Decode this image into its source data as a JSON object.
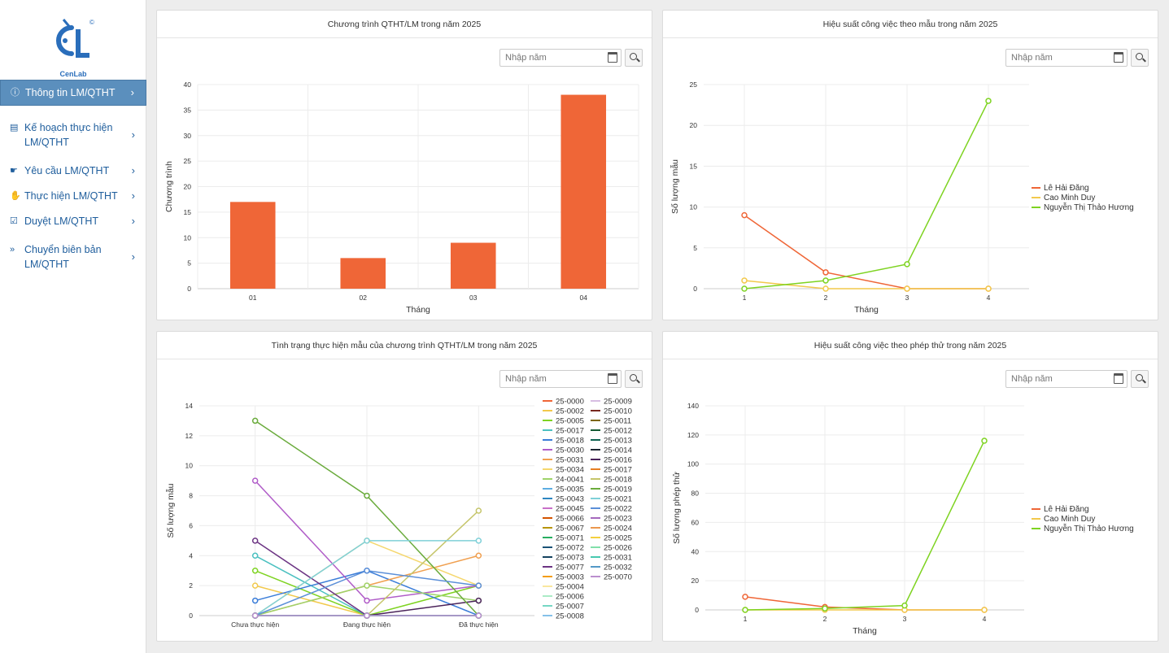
{
  "brand": {
    "name": "CenLab",
    "mark": "©",
    "color": "#2a6ebb"
  },
  "sidebar": {
    "items": [
      {
        "label": "Thông tin LM/QTHT",
        "icon": "info-icon",
        "active": true
      },
      {
        "label": "Kế hoạch thực hiện LM/QTHT",
        "icon": "document-icon",
        "active": false
      },
      {
        "label": "Yêu cầu LM/QTHT",
        "icon": "hand-point-icon",
        "active": false
      },
      {
        "label": "Thực hiện LM/QTHT",
        "icon": "hand-icon",
        "active": false
      },
      {
        "label": "Duyệt LM/QTHT",
        "icon": "check-square-icon",
        "active": false
      },
      {
        "label": "Chuyển biên bản LM/QTHT",
        "icon": "fast-forward-icon",
        "active": false
      }
    ]
  },
  "filter": {
    "placeholder": "Nhập năm"
  },
  "palette": [
    "#ef6637",
    "#f2c94c",
    "#7ed321",
    "#4bc0c0",
    "#3b7dd8",
    "#9b59b6"
  ],
  "charts": [
    {
      "title": "Chương trình QTHT/LM trong năm 2025",
      "chart_data": {
        "type": "bar",
        "categories": [
          "01",
          "02",
          "03",
          "04"
        ],
        "values": [
          17,
          6,
          9,
          38
        ],
        "xlabel": "Tháng",
        "ylabel": "Chương trình",
        "ylim": [
          0,
          40
        ],
        "yticks": [
          0,
          5,
          10,
          15,
          20,
          25,
          30,
          35,
          40
        ],
        "color": "#ef6637",
        "grid": true
      }
    },
    {
      "title": "Hiệu suất công việc theo mẫu trong năm 2025",
      "chart_data": {
        "type": "line",
        "x": [
          1,
          2,
          3,
          4
        ],
        "series": [
          {
            "name": "Lê Hải Đăng",
            "values": [
              9,
              2,
              0,
              0
            ],
            "color": "#ef6637"
          },
          {
            "name": "Cao Minh Duy",
            "values": [
              1,
              0,
              0,
              0
            ],
            "color": "#f2c94c"
          },
          {
            "name": "Nguyễn Thị Thảo Hương",
            "values": [
              0,
              1,
              3,
              23
            ],
            "color": "#7ed321"
          }
        ],
        "xlabel": "Tháng",
        "ylabel": "Số lượng mẫu",
        "ylim": [
          0,
          25
        ],
        "yticks": [
          0,
          5,
          10,
          15,
          20,
          25
        ],
        "legend": "right",
        "grid": true
      }
    },
    {
      "title": "Tình trạng thực hiện mẫu của chương trình QTHT/LM trong năm 2025",
      "chart_data": {
        "type": "line",
        "categories": [
          "Chưa thực hiện",
          "Đang thực hiện",
          "Đã thực hiện"
        ],
        "series": [
          {
            "name": "25-0000",
            "values": [
              0,
              0,
              0
            ],
            "color": "#ef6637"
          },
          {
            "name": "25-0002",
            "values": [
              2,
              0,
              0
            ],
            "color": "#f2c94c"
          },
          {
            "name": "25-0005",
            "values": [
              3,
              0,
              2
            ],
            "color": "#7ed321"
          },
          {
            "name": "25-0017",
            "values": [
              4,
              0,
              0
            ],
            "color": "#4bc0c0"
          },
          {
            "name": "25-0018",
            "values": [
              1,
              3,
              0
            ],
            "color": "#3b7dd8"
          },
          {
            "name": "25-0030",
            "values": [
              9,
              1,
              2
            ],
            "color": "#b05cc8"
          },
          {
            "name": "25-0031",
            "values": [
              0,
              2,
              4
            ],
            "color": "#f0a050"
          },
          {
            "name": "25-0034",
            "values": [
              0,
              5,
              2
            ],
            "color": "#f5d76e"
          },
          {
            "name": "24-0041",
            "values": [
              0,
              2,
              1
            ],
            "color": "#9ed36a"
          },
          {
            "name": "25-0035",
            "values": [
              0,
              0,
              0
            ],
            "color": "#5dade2"
          },
          {
            "name": "25-0043",
            "values": [
              0,
              0,
              0
            ],
            "color": "#2e86c1"
          },
          {
            "name": "25-0045",
            "values": [
              0,
              0,
              0
            ],
            "color": "#c870c8"
          },
          {
            "name": "25-0066",
            "values": [
              0,
              0,
              0
            ],
            "color": "#d35400"
          },
          {
            "name": "25-0067",
            "values": [
              0,
              0,
              0
            ],
            "color": "#b7950b"
          },
          {
            "name": "25-0071",
            "values": [
              0,
              0,
              0
            ],
            "color": "#27ae60"
          },
          {
            "name": "25-0072",
            "values": [
              0,
              0,
              0
            ],
            "color": "#1a5276"
          },
          {
            "name": "25-0073",
            "values": [
              0,
              0,
              0
            ],
            "color": "#154360"
          },
          {
            "name": "25-0077",
            "values": [
              5,
              0,
              0
            ],
            "color": "#6c3483"
          },
          {
            "name": "25-0003",
            "values": [
              0,
              0,
              0
            ],
            "color": "#f39c12"
          },
          {
            "name": "25-0004",
            "values": [
              0,
              0,
              0
            ],
            "color": "#f9e79f"
          },
          {
            "name": "25-0006",
            "values": [
              0,
              0,
              0
            ],
            "color": "#abebc6"
          },
          {
            "name": "25-0007",
            "values": [
              0,
              0,
              0
            ],
            "color": "#76d7c4"
          },
          {
            "name": "25-0008",
            "values": [
              0,
              0,
              0
            ],
            "color": "#85c1e9"
          },
          {
            "name": "25-0009",
            "values": [
              0,
              0,
              0
            ],
            "color": "#d7bde2"
          },
          {
            "name": "25-0010",
            "values": [
              0,
              0,
              0
            ],
            "color": "#78281f"
          },
          {
            "name": "25-0011",
            "values": [
              0,
              0,
              0
            ],
            "color": "#7d6608"
          },
          {
            "name": "25-0012",
            "values": [
              0,
              0,
              0
            ],
            "color": "#145a32"
          },
          {
            "name": "25-0013",
            "values": [
              0,
              0,
              0
            ],
            "color": "#0e6251"
          },
          {
            "name": "25-0014",
            "values": [
              0,
              0,
              0
            ],
            "color": "#1b2631"
          },
          {
            "name": "25-0016",
            "values": [
              0,
              0,
              1
            ],
            "color": "#4a235a"
          },
          {
            "name": "25-0017",
            "values": [
              0,
              0,
              0
            ],
            "color": "#e67e22"
          },
          {
            "name": "25-0018",
            "values": [
              0,
              0,
              7
            ],
            "color": "#c5c56a"
          },
          {
            "name": "25-0019",
            "values": [
              13,
              8,
              0
            ],
            "color": "#6aab3c"
          },
          {
            "name": "25-0021",
            "values": [
              0,
              5,
              5
            ],
            "color": "#7fd0d8"
          },
          {
            "name": "25-0022",
            "values": [
              0,
              3,
              2
            ],
            "color": "#5b8fd8"
          },
          {
            "name": "25-0023",
            "values": [
              0,
              0,
              0
            ],
            "color": "#a569bd"
          },
          {
            "name": "25-0024",
            "values": [
              0,
              0,
              0
            ],
            "color": "#eb984e"
          },
          {
            "name": "25-0025",
            "values": [
              0,
              0,
              0
            ],
            "color": "#f4d03f"
          },
          {
            "name": "25-0026",
            "values": [
              0,
              0,
              0
            ],
            "color": "#82e0aa"
          },
          {
            "name": "25-0031",
            "values": [
              0,
              0,
              0
            ],
            "color": "#48c9b0"
          },
          {
            "name": "25-0032",
            "values": [
              0,
              0,
              0
            ],
            "color": "#5499c7"
          },
          {
            "name": "25-0070",
            "values": [
              0,
              0,
              0
            ],
            "color": "#bb8fce"
          }
        ],
        "xlabel": "",
        "ylabel": "Số lượng mẫu",
        "ylim": [
          0,
          14
        ],
        "yticks": [
          0,
          2,
          4,
          6,
          8,
          10,
          12,
          14
        ],
        "legend": "right",
        "grid": true
      }
    },
    {
      "title": "Hiệu suất công việc theo phép thử trong năm 2025",
      "chart_data": {
        "type": "line",
        "x": [
          1,
          2,
          3,
          4
        ],
        "series": [
          {
            "name": "Lê Hải Đăng",
            "values": [
              9,
              2,
              0,
              0
            ],
            "color": "#ef6637"
          },
          {
            "name": "Cao Minh Duy",
            "values": [
              0,
              0,
              0,
              0
            ],
            "color": "#f2c94c"
          },
          {
            "name": "Nguyễn Thị Thảo Hương",
            "values": [
              0,
              1,
              3,
              116
            ],
            "color": "#7ed321"
          }
        ],
        "xlabel": "Tháng",
        "ylabel": "Số lượng phép thử",
        "ylim": [
          0,
          140
        ],
        "yticks": [
          0,
          20,
          40,
          60,
          80,
          100,
          120,
          140
        ],
        "legend": "right",
        "grid": true
      }
    }
  ]
}
